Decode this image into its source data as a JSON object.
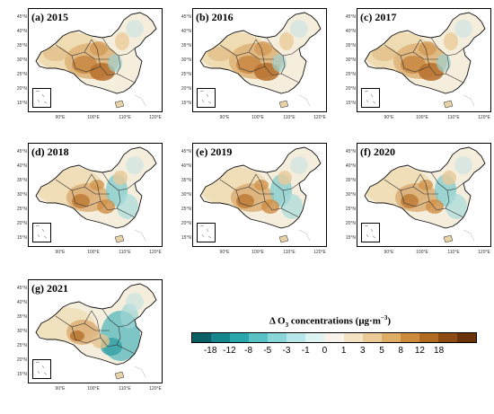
{
  "panels": [
    {
      "id": "2015",
      "label": "(a) 2015",
      "pattern": "warm"
    },
    {
      "id": "2016",
      "label": "(b) 2016",
      "pattern": "warm"
    },
    {
      "id": "2017",
      "label": "(c) 2017",
      "pattern": "warm"
    },
    {
      "id": "2018",
      "label": "(d) 2018",
      "pattern": "mixed"
    },
    {
      "id": "2019",
      "label": "(e) 2019",
      "pattern": "mixed"
    },
    {
      "id": "2020",
      "label": "(f) 2020",
      "pattern": "mixed"
    },
    {
      "id": "2021",
      "label": "(g) 2021",
      "pattern": "cool"
    }
  ],
  "axes": {
    "lat_labels": [
      "45°N",
      "40°N",
      "35°N",
      "30°N",
      "25°N",
      "20°N",
      "15°N"
    ],
    "lon_labels": [
      "90°E",
      "100°E",
      "110°E",
      "120°E"
    ]
  },
  "legend": {
    "title_prefix": "Δ O",
    "title_sub": "3",
    "title_mid": " concentrations (μg·m",
    "title_sup": "−3",
    "title_suffix": ")",
    "ticks": [
      "-18",
      "-12",
      "-8",
      "-5",
      "-3",
      "-1",
      "0",
      "1",
      "3",
      "5",
      "8",
      "12",
      "18"
    ],
    "colors": [
      "#0a5f64",
      "#14868c",
      "#2aa7ac",
      "#58c2c5",
      "#8ad6d8",
      "#b7e7e8",
      "#dff3f3",
      "#f7f3ea",
      "#f3e4c6",
      "#eacb98",
      "#dfae66",
      "#cb8a3c",
      "#b06a22",
      "#8f4c12",
      "#6b3208"
    ]
  }
}
